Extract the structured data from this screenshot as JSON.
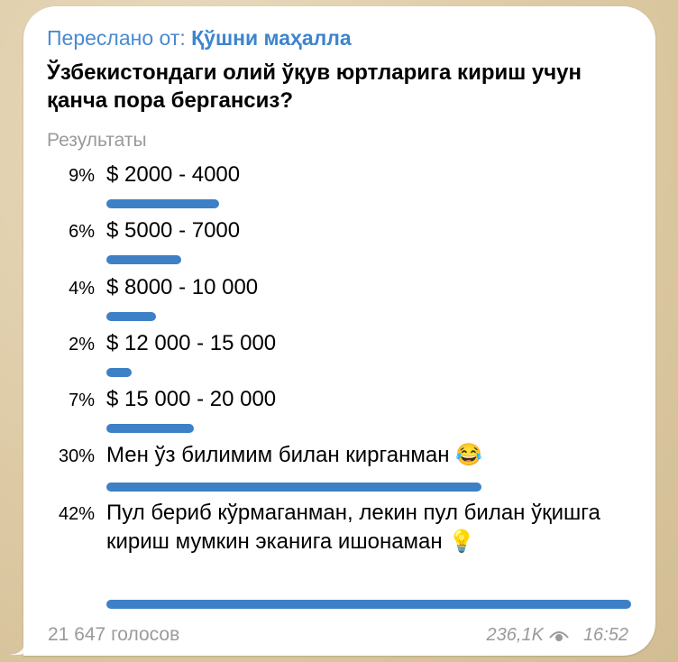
{
  "message": {
    "forwarded_prefix": "Переслано от:",
    "forwarded_from": "Қўшни маҳалла",
    "question": "Ўзбекистондаги олий ўқув юртларига кириш учун қанча пора бергансиз?",
    "results_label": "Результаты",
    "options": [
      {
        "percent": "9%",
        "value": 9,
        "label": "$ 2000 - 4000"
      },
      {
        "percent": "6%",
        "value": 6,
        "label": "$ 5000 - 7000"
      },
      {
        "percent": "4%",
        "value": 4,
        "label": "$ 8000 - 10 000"
      },
      {
        "percent": "2%",
        "value": 2,
        "label": "$ 12 000 - 15 000"
      },
      {
        "percent": "7%",
        "value": 7,
        "label": "$ 15 000 - 20 000"
      },
      {
        "percent": "30%",
        "value": 30,
        "label": "Мен ўз билимим билан кирганман 😂"
      },
      {
        "percent": "42%",
        "value": 42,
        "label": "Пул бериб кўрмаганман, лекин пул билан ўқишга кириш мумкин эканига ишонаман 💡"
      }
    ],
    "votes": "21 647 голосов",
    "views": "236,1K",
    "time": "16:52",
    "bar_color": "#3d80c6",
    "link_color": "#4a8ad0"
  }
}
